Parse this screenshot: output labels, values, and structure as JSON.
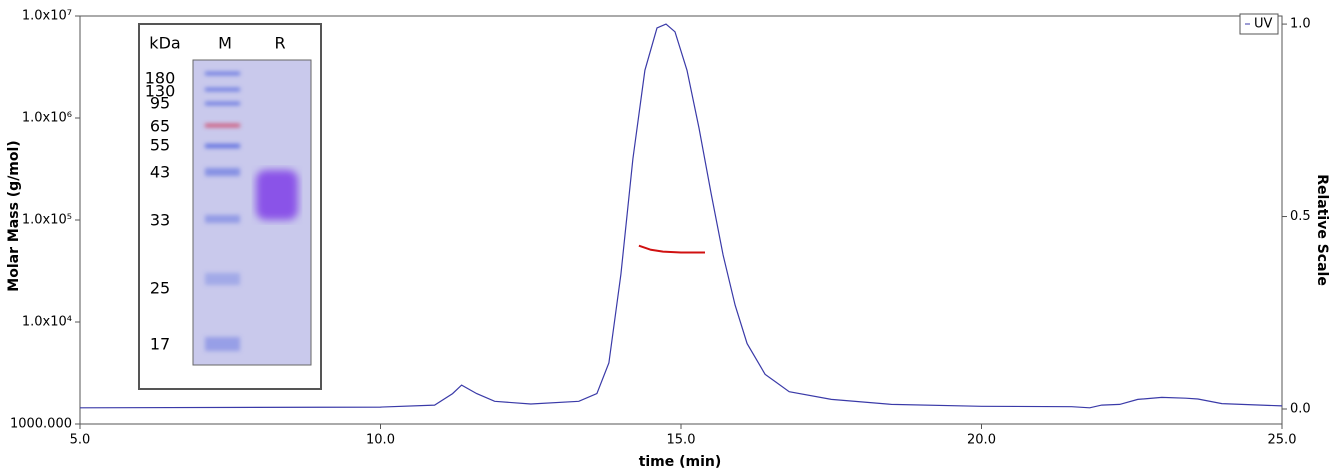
{
  "chart_data": {
    "type": "line",
    "x_label": "time (min)",
    "y_label": "Molar Mass (g/mol)",
    "y2_label": "Relative Scale",
    "xlim": [
      5,
      25
    ],
    "xticks": [
      {
        "value": 5,
        "label": "5.0"
      },
      {
        "value": 10,
        "label": "10.0"
      },
      {
        "value": 15,
        "label": "15.0"
      },
      {
        "value": 20,
        "label": "20.0"
      },
      {
        "value": 25,
        "label": "25.0"
      }
    ],
    "ylim": [
      1000,
      10000000
    ],
    "y_log": true,
    "yticks": [
      {
        "value": 1000,
        "label": "1000.000"
      },
      {
        "value": 10000,
        "label": "1.0x10⁴"
      },
      {
        "value": 100000,
        "label": "1.0x10⁵"
      },
      {
        "value": 1000000,
        "label": "1.0x10⁶"
      },
      {
        "value": 10000000,
        "label": "1.0x10⁷"
      }
    ],
    "y2lim": [
      -0.039,
      1.021
    ],
    "y2ticks": [
      {
        "value": 0,
        "label": "0.0"
      },
      {
        "value": 0.5,
        "label": "0.5"
      },
      {
        "value": 1,
        "label": "1.0"
      }
    ],
    "grid": false,
    "legend": "top-right",
    "series": [
      {
        "name": "UV",
        "color": "#3a3aa8",
        "axis": "y2",
        "x": [
          5,
          10,
          10.9,
          11.2,
          11.35,
          11.6,
          11.9,
          12.5,
          13.3,
          13.6,
          13.8,
          14.0,
          14.2,
          14.4,
          14.6,
          14.75,
          14.9,
          15.1,
          15.3,
          15.5,
          15.7,
          15.9,
          16.1,
          16.4,
          16.8,
          17.5,
          18.5,
          20,
          21.5,
          21.8,
          22.0,
          22.3,
          22.6,
          23.0,
          23.4,
          23.6,
          24.0,
          25
        ],
        "values": [
          0.003,
          0.005,
          0.01,
          0.04,
          0.062,
          0.04,
          0.02,
          0.013,
          0.02,
          0.04,
          0.12,
          0.35,
          0.65,
          0.88,
          0.99,
          1.0,
          0.98,
          0.88,
          0.73,
          0.56,
          0.4,
          0.27,
          0.17,
          0.09,
          0.045,
          0.025,
          0.012,
          0.007,
          0.006,
          0.003,
          0.01,
          0.012,
          0.025,
          0.03,
          0.028,
          0.026,
          0.014,
          0.008
        ]
      },
      {
        "color": "#d01010",
        "axis": "y",
        "x": [
          14.3,
          14.5,
          14.7,
          15.0,
          15.4
        ],
        "values": [
          56000,
          51000,
          49000,
          48000,
          48000
        ]
      }
    ],
    "inset": {
      "headers": [
        "kDa",
        "M",
        "R"
      ],
      "markers": [
        "180",
        "130",
        "95",
        "65",
        "55",
        "43",
        "33",
        "25",
        "17"
      ]
    }
  }
}
